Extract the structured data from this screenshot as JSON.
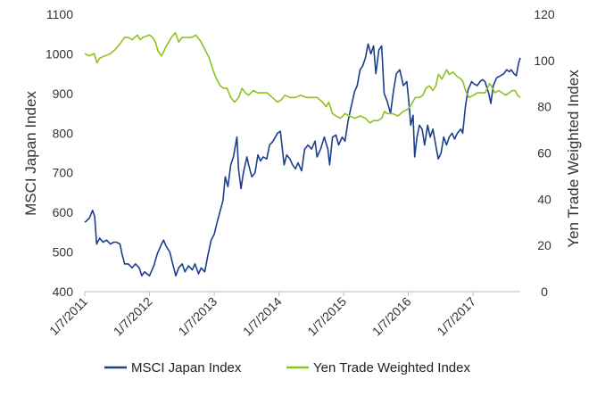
{
  "chart_data": {
    "type": "line",
    "title": "",
    "xlabel": "",
    "ylabel": "MSCI Japan Index",
    "y2label": "Yen Trade Weighted Index",
    "ylim": [
      400,
      1100
    ],
    "y2lim": [
      0,
      120
    ],
    "yticks": [
      "400",
      "500",
      "600",
      "700",
      "800",
      "900",
      "1000",
      "1100"
    ],
    "y2ticks": [
      "0",
      "20",
      "40",
      "60",
      "80",
      "100",
      "120"
    ],
    "xticks": [
      "1/7/2011",
      "1/7/2012",
      "1/7/2013",
      "1/7/2014",
      "1/7/2015",
      "1/7/2016",
      "1/7/2017"
    ],
    "xlim": [
      "2011-01-07",
      "2017-09-30"
    ],
    "grid": false,
    "legend": "bottom",
    "series": [
      {
        "name": "MSCI Japan Index",
        "axis": "left",
        "color": "#1b3f8b",
        "points": [
          [
            "2011-01-07",
            575
          ],
          [
            "2011-02-01",
            585
          ],
          [
            "2011-02-20",
            605
          ],
          [
            "2011-03-04",
            590
          ],
          [
            "2011-03-15",
            520
          ],
          [
            "2011-04-01",
            535
          ],
          [
            "2011-04-20",
            525
          ],
          [
            "2011-05-10",
            530
          ],
          [
            "2011-06-01",
            520
          ],
          [
            "2011-06-20",
            525
          ],
          [
            "2011-07-05",
            525
          ],
          [
            "2011-07-25",
            520
          ],
          [
            "2011-08-05",
            495
          ],
          [
            "2011-08-20",
            470
          ],
          [
            "2011-09-10",
            470
          ],
          [
            "2011-10-01",
            460
          ],
          [
            "2011-10-20",
            470
          ],
          [
            "2011-11-10",
            460
          ],
          [
            "2011-11-25",
            440
          ],
          [
            "2011-12-10",
            450
          ],
          [
            "2012-01-07",
            440
          ],
          [
            "2012-02-01",
            465
          ],
          [
            "2012-02-20",
            495
          ],
          [
            "2012-03-15",
            520
          ],
          [
            "2012-03-27",
            530
          ],
          [
            "2012-04-10",
            515
          ],
          [
            "2012-05-01",
            500
          ],
          [
            "2012-05-20",
            465
          ],
          [
            "2012-06-04",
            440
          ],
          [
            "2012-06-20",
            460
          ],
          [
            "2012-07-10",
            470
          ],
          [
            "2012-07-25",
            450
          ],
          [
            "2012-08-15",
            465
          ],
          [
            "2012-09-05",
            455
          ],
          [
            "2012-09-20",
            470
          ],
          [
            "2012-10-10",
            445
          ],
          [
            "2012-10-25",
            460
          ],
          [
            "2012-11-14",
            450
          ],
          [
            "2012-12-01",
            490
          ],
          [
            "2012-12-20",
            530
          ],
          [
            "2013-01-07",
            545
          ],
          [
            "2013-01-20",
            570
          ],
          [
            "2013-02-07",
            600
          ],
          [
            "2013-02-25",
            630
          ],
          [
            "2013-03-10",
            690
          ],
          [
            "2013-03-25",
            665
          ],
          [
            "2013-04-10",
            720
          ],
          [
            "2013-04-25",
            740
          ],
          [
            "2013-05-15",
            790
          ],
          [
            "2013-05-24",
            710
          ],
          [
            "2013-06-07",
            660
          ],
          [
            "2013-06-20",
            700
          ],
          [
            "2013-07-10",
            740
          ],
          [
            "2013-07-20",
            720
          ],
          [
            "2013-08-07",
            690
          ],
          [
            "2013-08-25",
            700
          ],
          [
            "2013-09-10",
            745
          ],
          [
            "2013-09-25",
            730
          ],
          [
            "2013-10-10",
            740
          ],
          [
            "2013-10-30",
            735
          ],
          [
            "2013-11-15",
            770
          ],
          [
            "2013-12-05",
            780
          ],
          [
            "2013-12-30",
            800
          ],
          [
            "2014-01-15",
            805
          ],
          [
            "2014-02-05",
            720
          ],
          [
            "2014-02-20",
            745
          ],
          [
            "2014-03-10",
            735
          ],
          [
            "2014-03-25",
            720
          ],
          [
            "2014-04-10",
            710
          ],
          [
            "2014-04-25",
            725
          ],
          [
            "2014-05-15",
            705
          ],
          [
            "2014-06-01",
            760
          ],
          [
            "2014-06-20",
            770
          ],
          [
            "2014-07-10",
            760
          ],
          [
            "2014-07-30",
            780
          ],
          [
            "2014-08-10",
            740
          ],
          [
            "2014-08-30",
            760
          ],
          [
            "2014-09-20",
            790
          ],
          [
            "2014-10-10",
            760
          ],
          [
            "2014-10-20",
            720
          ],
          [
            "2014-11-05",
            790
          ],
          [
            "2014-11-25",
            795
          ],
          [
            "2014-12-10",
            770
          ],
          [
            "2014-12-30",
            790
          ],
          [
            "2015-01-15",
            780
          ],
          [
            "2015-02-01",
            830
          ],
          [
            "2015-02-20",
            870
          ],
          [
            "2015-03-10",
            905
          ],
          [
            "2015-03-25",
            920
          ],
          [
            "2015-04-10",
            960
          ],
          [
            "2015-04-25",
            970
          ],
          [
            "2015-05-10",
            990
          ],
          [
            "2015-05-25",
            1025
          ],
          [
            "2015-06-10",
            1000
          ],
          [
            "2015-06-25",
            1020
          ],
          [
            "2015-07-08",
            950
          ],
          [
            "2015-07-25",
            1010
          ],
          [
            "2015-08-10",
            1020
          ],
          [
            "2015-08-24",
            900
          ],
          [
            "2015-09-10",
            880
          ],
          [
            "2015-09-29",
            850
          ],
          [
            "2015-10-15",
            905
          ],
          [
            "2015-11-01",
            950
          ],
          [
            "2015-11-20",
            960
          ],
          [
            "2015-12-10",
            920
          ],
          [
            "2015-12-30",
            930
          ],
          [
            "2016-01-10",
            880
          ],
          [
            "2016-01-21",
            820
          ],
          [
            "2016-02-03",
            845
          ],
          [
            "2016-02-12",
            740
          ],
          [
            "2016-02-25",
            790
          ],
          [
            "2016-03-10",
            820
          ],
          [
            "2016-03-25",
            810
          ],
          [
            "2016-04-08",
            770
          ],
          [
            "2016-04-25",
            820
          ],
          [
            "2016-05-10",
            790
          ],
          [
            "2016-05-25",
            810
          ],
          [
            "2016-06-10",
            770
          ],
          [
            "2016-06-24",
            735
          ],
          [
            "2016-07-10",
            750
          ],
          [
            "2016-07-25",
            790
          ],
          [
            "2016-08-10",
            770
          ],
          [
            "2016-08-25",
            790
          ],
          [
            "2016-09-10",
            800
          ],
          [
            "2016-09-25",
            785
          ],
          [
            "2016-10-10",
            800
          ],
          [
            "2016-10-30",
            810
          ],
          [
            "2016-11-09",
            800
          ],
          [
            "2016-11-25",
            870
          ],
          [
            "2016-12-10",
            910
          ],
          [
            "2016-12-30",
            930
          ],
          [
            "2017-01-10",
            925
          ],
          [
            "2017-01-30",
            920
          ],
          [
            "2017-02-15",
            930
          ],
          [
            "2017-03-01",
            935
          ],
          [
            "2017-03-15",
            930
          ],
          [
            "2017-04-05",
            900
          ],
          [
            "2017-04-17",
            875
          ],
          [
            "2017-05-01",
            920
          ],
          [
            "2017-05-20",
            940
          ],
          [
            "2017-06-10",
            945
          ],
          [
            "2017-06-30",
            950
          ],
          [
            "2017-07-15",
            960
          ],
          [
            "2017-07-30",
            955
          ],
          [
            "2017-08-10",
            960
          ],
          [
            "2017-08-25",
            950
          ],
          [
            "2017-09-08",
            945
          ],
          [
            "2017-09-20",
            975
          ],
          [
            "2017-09-30",
            990
          ]
        ]
      },
      {
        "name": "Yen Trade Weighted Index",
        "axis": "right",
        "color": "#8dc21f",
        "points": [
          [
            "2011-01-07",
            103
          ],
          [
            "2011-02-01",
            102
          ],
          [
            "2011-03-01",
            103
          ],
          [
            "2011-03-17",
            99
          ],
          [
            "2011-04-01",
            101
          ],
          [
            "2011-05-01",
            102
          ],
          [
            "2011-06-01",
            103
          ],
          [
            "2011-07-01",
            105
          ],
          [
            "2011-08-01",
            108
          ],
          [
            "2011-08-20",
            110
          ],
          [
            "2011-09-10",
            110
          ],
          [
            "2011-10-01",
            109
          ],
          [
            "2011-10-31",
            111
          ],
          [
            "2011-11-15",
            109
          ],
          [
            "2011-12-01",
            110
          ],
          [
            "2012-01-07",
            111
          ],
          [
            "2012-01-25",
            110
          ],
          [
            "2012-02-10",
            108
          ],
          [
            "2012-02-25",
            104
          ],
          [
            "2012-03-15",
            102
          ],
          [
            "2012-04-10",
            106
          ],
          [
            "2012-05-10",
            110
          ],
          [
            "2012-06-01",
            112
          ],
          [
            "2012-06-20",
            108
          ],
          [
            "2012-07-10",
            110
          ],
          [
            "2012-08-01",
            110
          ],
          [
            "2012-09-01",
            110
          ],
          [
            "2012-09-25",
            111
          ],
          [
            "2012-10-25",
            108
          ],
          [
            "2012-11-20",
            104
          ],
          [
            "2012-12-10",
            101
          ],
          [
            "2012-12-30",
            96
          ],
          [
            "2013-01-20",
            92
          ],
          [
            "2013-02-10",
            89
          ],
          [
            "2013-03-01",
            88
          ],
          [
            "2013-03-20",
            88
          ],
          [
            "2013-04-10",
            84
          ],
          [
            "2013-05-01",
            82
          ],
          [
            "2013-05-25",
            84
          ],
          [
            "2013-06-13",
            88
          ],
          [
            "2013-07-01",
            86
          ],
          [
            "2013-07-20",
            85
          ],
          [
            "2013-08-15",
            87
          ],
          [
            "2013-09-10",
            86
          ],
          [
            "2013-10-10",
            86
          ],
          [
            "2013-11-01",
            86
          ],
          [
            "2013-12-01",
            84
          ],
          [
            "2013-12-30",
            82
          ],
          [
            "2014-01-20",
            83
          ],
          [
            "2014-02-10",
            85
          ],
          [
            "2014-03-10",
            84
          ],
          [
            "2014-04-10",
            84
          ],
          [
            "2014-05-10",
            85
          ],
          [
            "2014-06-10",
            84
          ],
          [
            "2014-07-10",
            84
          ],
          [
            "2014-08-10",
            84
          ],
          [
            "2014-09-10",
            82
          ],
          [
            "2014-10-01",
            80
          ],
          [
            "2014-10-15",
            82
          ],
          [
            "2014-11-05",
            77
          ],
          [
            "2014-11-25",
            76
          ],
          [
            "2014-12-20",
            75
          ],
          [
            "2015-01-15",
            77
          ],
          [
            "2015-02-10",
            76
          ],
          [
            "2015-03-10",
            75
          ],
          [
            "2015-04-10",
            76
          ],
          [
            "2015-05-10",
            75
          ],
          [
            "2015-06-05",
            73
          ],
          [
            "2015-06-25",
            74
          ],
          [
            "2015-07-20",
            74
          ],
          [
            "2015-08-10",
            75
          ],
          [
            "2015-08-26",
            78
          ],
          [
            "2015-09-10",
            77
          ],
          [
            "2015-10-10",
            77
          ],
          [
            "2015-11-10",
            76
          ],
          [
            "2015-12-10",
            78
          ],
          [
            "2016-01-05",
            79
          ],
          [
            "2016-01-25",
            81
          ],
          [
            "2016-02-15",
            84
          ],
          [
            "2016-03-10",
            84
          ],
          [
            "2016-03-30",
            85
          ],
          [
            "2016-04-15",
            88
          ],
          [
            "2016-05-05",
            89
          ],
          [
            "2016-05-25",
            87
          ],
          [
            "2016-06-10",
            89
          ],
          [
            "2016-06-25",
            94
          ],
          [
            "2016-07-15",
            92
          ],
          [
            "2016-08-10",
            96
          ],
          [
            "2016-08-25",
            94
          ],
          [
            "2016-09-15",
            95
          ],
          [
            "2016-10-10",
            93
          ],
          [
            "2016-10-30",
            92
          ],
          [
            "2016-11-10",
            91
          ],
          [
            "2016-11-25",
            87
          ],
          [
            "2016-12-15",
            84
          ],
          [
            "2017-01-10",
            85
          ],
          [
            "2017-01-30",
            86
          ],
          [
            "2017-02-20",
            86
          ],
          [
            "2017-03-15",
            86
          ],
          [
            "2017-04-10",
            90
          ],
          [
            "2017-04-20",
            89
          ],
          [
            "2017-05-10",
            86
          ],
          [
            "2017-06-01",
            87
          ],
          [
            "2017-06-20",
            86
          ],
          [
            "2017-07-10",
            85
          ],
          [
            "2017-07-30",
            86
          ],
          [
            "2017-08-15",
            87
          ],
          [
            "2017-09-01",
            87
          ],
          [
            "2017-09-15",
            85
          ],
          [
            "2017-09-30",
            84
          ]
        ]
      }
    ]
  }
}
